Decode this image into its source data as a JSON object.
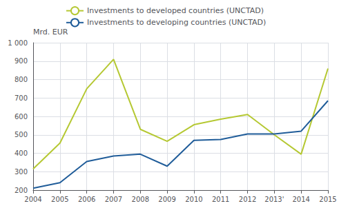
{
  "chart_data": {
    "type": "line",
    "categories": [
      "2004",
      "2005",
      "2006",
      "2007",
      "2008",
      "2009",
      "2010",
      "2011",
      "2012",
      "2013'",
      "2014",
      "2015"
    ],
    "series": [
      {
        "name": "Investments to developed countries (UNCTAD)",
        "color": "#b5c832",
        "values": [
          315,
          455,
          750,
          910,
          530,
          465,
          555,
          585,
          610,
          500,
          395,
          860
        ]
      },
      {
        "name": "Investments to developing countries (UNCTAD)",
        "color": "#1f5c99",
        "values": [
          210,
          240,
          355,
          385,
          395,
          330,
          470,
          475,
          505,
          505,
          520,
          685
        ]
      }
    ],
    "ylabel": "Mrd. EUR",
    "ylim": [
      200,
      1000
    ],
    "yticks": [
      200,
      300,
      400,
      500,
      600,
      700,
      800,
      900,
      {
        "value": 1000,
        "label": "1 000"
      }
    ],
    "grid": true,
    "legend": "upper left"
  }
}
